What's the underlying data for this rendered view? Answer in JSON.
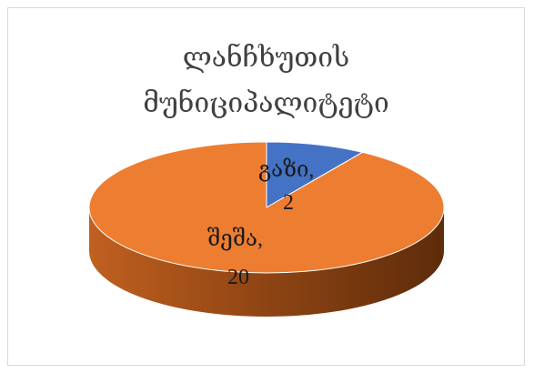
{
  "chart_data": {
    "type": "pie",
    "title_lines": [
      "ლანჩხუთის",
      "მუნიციპალიტეტი"
    ],
    "slices": [
      {
        "label_line1": "გაზი,",
        "label_line2": "2",
        "value": 2,
        "color": "#4472c4",
        "side_color": "#2f5597"
      },
      {
        "label_line1": "შეშა,",
        "label_line2": "20",
        "value": 20,
        "color": "#ed7d31",
        "side_color": "#a9561e"
      }
    ],
    "three_d": true,
    "legend": "none"
  }
}
